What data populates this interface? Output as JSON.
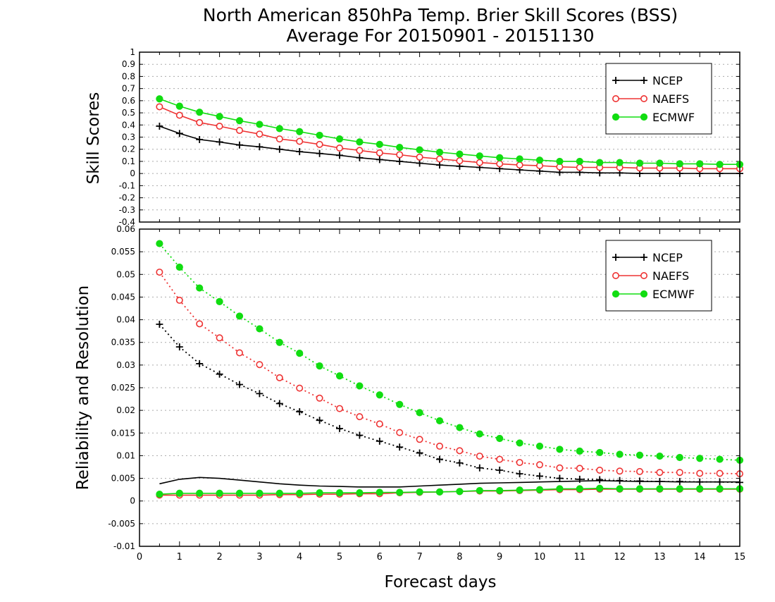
{
  "titles": {
    "line1": "North American 850hPa Temp. Brier Skill Scores (BSS)",
    "line2": "Average For 20150901 - 20151130"
  },
  "xlabel": "Forecast days",
  "colors": {
    "NCEP": "#000000",
    "NAEFS": "#ee3333",
    "ECMWF": "#11dd11",
    "grid": "#aaaaaa",
    "frame": "#000000"
  },
  "chart_data": [
    {
      "type": "line",
      "id": "top",
      "ylabel": "Skill Scores",
      "ylim": [
        -0.4,
        1.0
      ],
      "xlim": [
        0,
        15
      ],
      "yticks": [
        "-0.4",
        "-0.3",
        "-0.2",
        "-0.1",
        "0",
        "0.1",
        "0.2",
        "0.3",
        "0.4",
        "0.5",
        "0.6",
        "0.7",
        "0.8",
        "0.9",
        "1"
      ],
      "grid": "horizontal dotted",
      "legend": {
        "placement": "top-right",
        "entries": [
          "NCEP",
          "NAEFS",
          "ECMWF"
        ]
      },
      "x": [
        0.5,
        1,
        1.5,
        2,
        2.5,
        3,
        3.5,
        4,
        4.5,
        5,
        5.5,
        6,
        6.5,
        7,
        7.5,
        8,
        8.5,
        9,
        9.5,
        10,
        10.5,
        11,
        11.5,
        12,
        12.5,
        13,
        13.5,
        14,
        14.5,
        15
      ],
      "series": [
        {
          "name": "NCEP",
          "marker": "plus",
          "line": "solid",
          "values": [
            0.39,
            0.33,
            0.28,
            0.26,
            0.235,
            0.22,
            0.2,
            0.18,
            0.165,
            0.15,
            0.13,
            0.115,
            0.1,
            0.085,
            0.07,
            0.06,
            0.05,
            0.04,
            0.03,
            0.02,
            0.01,
            0.01,
            0.005,
            0.005,
            0.0,
            0.0,
            0.0,
            0.0,
            0.0,
            0.0
          ]
        },
        {
          "name": "NAEFS",
          "marker": "open-circle",
          "line": "solid",
          "values": [
            0.55,
            0.48,
            0.42,
            0.39,
            0.355,
            0.325,
            0.285,
            0.265,
            0.24,
            0.21,
            0.19,
            0.17,
            0.155,
            0.135,
            0.12,
            0.105,
            0.09,
            0.08,
            0.07,
            0.065,
            0.055,
            0.05,
            0.05,
            0.05,
            0.045,
            0.045,
            0.045,
            0.04,
            0.04,
            0.04
          ]
        },
        {
          "name": "ECMWF",
          "marker": "filled-circle",
          "line": "solid",
          "values": [
            0.615,
            0.555,
            0.505,
            0.47,
            0.435,
            0.405,
            0.37,
            0.345,
            0.315,
            0.285,
            0.26,
            0.24,
            0.215,
            0.195,
            0.175,
            0.16,
            0.145,
            0.13,
            0.12,
            0.11,
            0.1,
            0.1,
            0.09,
            0.09,
            0.085,
            0.085,
            0.08,
            0.08,
            0.075,
            0.075
          ]
        }
      ]
    },
    {
      "type": "line",
      "id": "bottom",
      "ylabel": "Reliability and Resolution",
      "ylim": [
        -0.01,
        0.06
      ],
      "xlim": [
        0,
        15
      ],
      "yticks": [
        "-0.01",
        "-0.005",
        "0",
        "0.005",
        "0.01",
        "0.015",
        "0.02",
        "0.025",
        "0.03",
        "0.035",
        "0.04",
        "0.045",
        "0.05",
        "0.055",
        "0.06"
      ],
      "xticks": [
        "0",
        "1",
        "2",
        "3",
        "4",
        "5",
        "6",
        "7",
        "8",
        "9",
        "10",
        "11",
        "12",
        "13",
        "14",
        "15"
      ],
      "grid": "horizontal dotted",
      "legend": {
        "placement": "top-right",
        "entries": [
          "NCEP",
          "NAEFS",
          "ECMWF"
        ]
      },
      "x": [
        0.5,
        1,
        1.5,
        2,
        2.5,
        3,
        3.5,
        4,
        4.5,
        5,
        5.5,
        6,
        6.5,
        7,
        7.5,
        8,
        8.5,
        9,
        9.5,
        10,
        10.5,
        11,
        11.5,
        12,
        12.5,
        13,
        13.5,
        14,
        14.5,
        15
      ],
      "series": [
        {
          "name": "NCEP",
          "group": "resolution",
          "marker": "plus",
          "line": "dotted",
          "values": [
            0.039,
            0.034,
            0.0303,
            0.028,
            0.0257,
            0.0237,
            0.0215,
            0.0197,
            0.0178,
            0.016,
            0.0145,
            0.0132,
            0.0119,
            0.0106,
            0.0092,
            0.0084,
            0.0073,
            0.0068,
            0.006,
            0.0055,
            0.005,
            0.0048,
            0.0047,
            0.0045,
            0.0044,
            0.0043,
            0.0043,
            0.0042,
            0.0042,
            0.0041
          ]
        },
        {
          "name": "NCEP",
          "group": "reliability",
          "marker": "none",
          "line": "solid",
          "values": [
            0.0038,
            0.0048,
            0.0052,
            0.005,
            0.0046,
            0.0042,
            0.0038,
            0.0035,
            0.0033,
            0.0032,
            0.0031,
            0.0031,
            0.0031,
            0.0033,
            0.0035,
            0.0037,
            0.0039,
            0.004,
            0.0041,
            0.0042,
            0.0043,
            0.0044,
            0.0045,
            0.0044,
            0.0043,
            0.0043,
            0.0042,
            0.0042,
            0.0042,
            0.0042
          ]
        },
        {
          "name": "NAEFS",
          "group": "resolution",
          "marker": "open-circle",
          "line": "dotted",
          "values": [
            0.0505,
            0.0443,
            0.0391,
            0.036,
            0.0327,
            0.0301,
            0.0272,
            0.0249,
            0.0227,
            0.0204,
            0.0186,
            0.017,
            0.0151,
            0.0136,
            0.0121,
            0.0111,
            0.0099,
            0.0092,
            0.0085,
            0.008,
            0.0073,
            0.0072,
            0.0068,
            0.0066,
            0.0065,
            0.0063,
            0.0063,
            0.0061,
            0.0061,
            0.006
          ]
        },
        {
          "name": "NAEFS",
          "group": "reliability",
          "marker": "open-circle",
          "line": "solid",
          "values": [
            0.0013,
            0.0013,
            0.0013,
            0.0013,
            0.0013,
            0.0013,
            0.0014,
            0.0014,
            0.0015,
            0.0015,
            0.0016,
            0.0016,
            0.0018,
            0.0019,
            0.002,
            0.0021,
            0.0022,
            0.0022,
            0.0023,
            0.0024,
            0.0025,
            0.0025,
            0.0026,
            0.0026,
            0.0026,
            0.0026,
            0.0026,
            0.0026,
            0.0026,
            0.0026
          ]
        },
        {
          "name": "ECMWF",
          "group": "resolution",
          "marker": "filled-circle",
          "line": "dotted",
          "values": [
            0.0568,
            0.0516,
            0.047,
            0.044,
            0.0408,
            0.038,
            0.035,
            0.0326,
            0.0298,
            0.0276,
            0.0254,
            0.0234,
            0.0213,
            0.0195,
            0.0177,
            0.0162,
            0.0148,
            0.0138,
            0.0128,
            0.0121,
            0.0114,
            0.011,
            0.0107,
            0.0103,
            0.0101,
            0.0099,
            0.0096,
            0.0094,
            0.0092,
            0.009
          ]
        },
        {
          "name": "ECMWF",
          "group": "reliability",
          "marker": "filled-circle",
          "line": "solid",
          "values": [
            0.0015,
            0.0017,
            0.0017,
            0.0017,
            0.0017,
            0.0017,
            0.0017,
            0.0017,
            0.0018,
            0.0018,
            0.0018,
            0.0019,
            0.0019,
            0.002,
            0.002,
            0.0021,
            0.0023,
            0.0023,
            0.0024,
            0.0025,
            0.0027,
            0.0027,
            0.0028,
            0.0027,
            0.0027,
            0.0027,
            0.0027,
            0.0027,
            0.0027,
            0.0027
          ]
        }
      ]
    }
  ]
}
